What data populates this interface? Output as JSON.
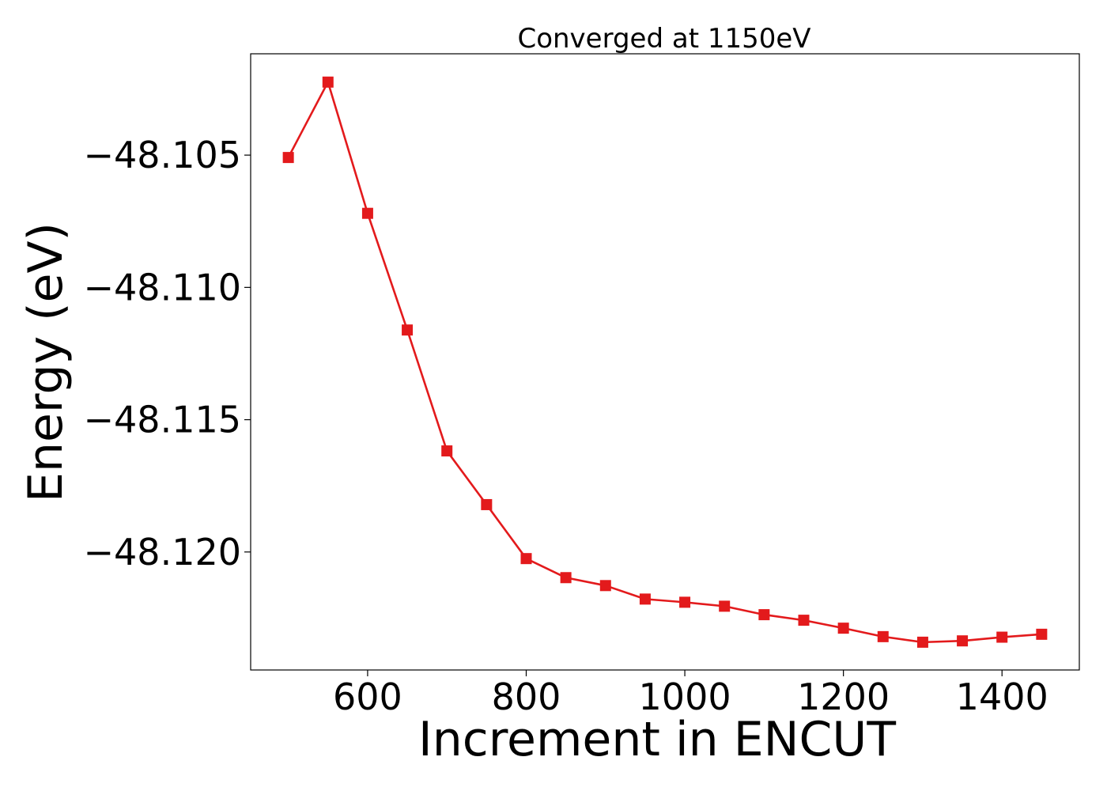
{
  "chart_data": {
    "type": "line",
    "title": "Converged at 1150eV",
    "xlabel": "Increment in ENCUT",
    "ylabel": "Energy (eV)",
    "xlim": [
      452.5,
      1497.5
    ],
    "ylim": [
      -48.12446,
      -48.10117
    ],
    "x_ticks": [
      600,
      800,
      1000,
      1200,
      1400
    ],
    "x_tick_labels": [
      "600",
      "800",
      "1000",
      "1200",
      "1400"
    ],
    "y_ticks": [
      -48.105,
      -48.11,
      -48.115,
      -48.12
    ],
    "y_tick_labels": [
      "−48.105",
      "−48.110",
      "−48.115",
      "−48.120"
    ],
    "grid": false,
    "legend": "none",
    "series": [
      {
        "color": "#e31a1c",
        "marker": "square",
        "x": [
          500,
          550,
          600,
          650,
          700,
          750,
          800,
          850,
          900,
          950,
          1000,
          1050,
          1100,
          1150,
          1200,
          1250,
          1300,
          1350,
          1400,
          1450
        ],
        "y": [
          -48.10509,
          -48.10224,
          -48.1072,
          -48.11161,
          -48.11618,
          -48.11821,
          -48.12025,
          -48.12097,
          -48.12127,
          -48.12178,
          -48.1219,
          -48.12205,
          -48.12237,
          -48.12258,
          -48.12288,
          -48.1232,
          -48.12341,
          -48.12336,
          -48.12322,
          -48.12311
        ]
      }
    ]
  }
}
